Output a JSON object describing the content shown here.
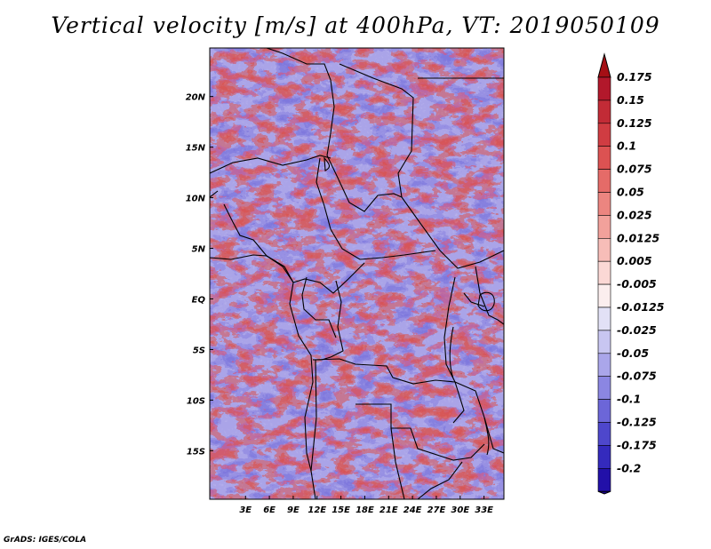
{
  "chart_data": {
    "type": "heatmap",
    "title": "Vertical velocity [m/s] at 400hPa, VT: 2019050109",
    "xlabel": "",
    "ylabel": "",
    "xlim": [
      -1.5,
      35.5
    ],
    "ylim": [
      -19.8,
      24.8
    ],
    "x_ticks": [
      {
        "value": 3,
        "label": "3E"
      },
      {
        "value": 6,
        "label": "6E"
      },
      {
        "value": 9,
        "label": "9E"
      },
      {
        "value": 12,
        "label": "12E"
      },
      {
        "value": 15,
        "label": "15E"
      },
      {
        "value": 18,
        "label": "18E"
      },
      {
        "value": 21,
        "label": "21E"
      },
      {
        "value": 24,
        "label": "24E"
      },
      {
        "value": 27,
        "label": "27E"
      },
      {
        "value": 30,
        "label": "30E"
      },
      {
        "value": 33,
        "label": "33E"
      }
    ],
    "y_ticks": [
      {
        "value": 20,
        "label": "20N"
      },
      {
        "value": 15,
        "label": "15N"
      },
      {
        "value": 10,
        "label": "10N"
      },
      {
        "value": 5,
        "label": "5N"
      },
      {
        "value": 0,
        "label": "EQ"
      },
      {
        "value": -5,
        "label": "5S"
      },
      {
        "value": -10,
        "label": "10S"
      },
      {
        "value": -15,
        "label": "15S"
      }
    ],
    "colorbar": {
      "levels": [
        {
          "label": "0.175",
          "color": "#b2182b"
        },
        {
          "label": "0.15",
          "color": "#c22b36"
        },
        {
          "label": "0.125",
          "color": "#d03c42"
        },
        {
          "label": "0.1",
          "color": "#dc5252"
        },
        {
          "label": "0.075",
          "color": "#e56b68"
        },
        {
          "label": "0.05",
          "color": "#ec8580"
        },
        {
          "label": "0.025",
          "color": "#f2a19b"
        },
        {
          "label": "0.0125",
          "color": "#f7bdb8"
        },
        {
          "label": "0.005",
          "color": "#fbd8d5"
        },
        {
          "label": "-0.005",
          "color": "#fbeeee"
        },
        {
          "label": "-0.0125",
          "color": "#e2e1f6"
        },
        {
          "label": "-0.025",
          "color": "#c8c6f1"
        },
        {
          "label": "-0.05",
          "color": "#aaa6ea"
        },
        {
          "label": "-0.075",
          "color": "#8b86e2"
        },
        {
          "label": "-0.1",
          "color": "#6c66d8"
        },
        {
          "label": "-0.125",
          "color": "#4e47cc"
        },
        {
          "label": "-0.175",
          "color": "#342abd"
        },
        {
          "label": "-0.2",
          "color": "#2210a8"
        }
      ],
      "top_color": "#a50f15",
      "bottom_color": "#1a0590"
    }
  },
  "credit": "GrADS: IGES/COLA"
}
